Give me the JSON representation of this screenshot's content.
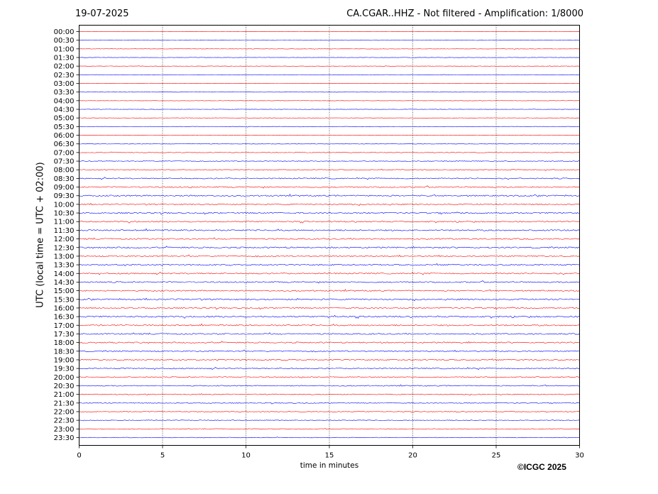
{
  "header": {
    "date": "19-07-2025",
    "title": "CA.CGAR..HHZ - Not filtered - Amplification: 1/8000"
  },
  "footer": {
    "copyright": "©ICGC 2025"
  },
  "chart_data": {
    "type": "line",
    "title": "CA.CGAR..HHZ - Not filtered - Amplification: 1/8000",
    "xlabel": "time in minutes",
    "ylabel": "UTC (local time = UTC + 02:00)",
    "xlim": [
      0,
      30
    ],
    "xticks": [
      0,
      5,
      10,
      15,
      20,
      25,
      30
    ],
    "vertical_gridlines": [
      5,
      10,
      15,
      20,
      25
    ],
    "trace_colors": [
      "#ff0000",
      "#0000ff"
    ],
    "rows": [
      "00:00",
      "00:30",
      "01:00",
      "01:30",
      "02:00",
      "02:30",
      "03:00",
      "03:30",
      "04:00",
      "04:30",
      "05:00",
      "05:30",
      "06:00",
      "06:30",
      "07:00",
      "07:30",
      "08:00",
      "08:30",
      "09:00",
      "09:30",
      "10:00",
      "10:30",
      "11:00",
      "11:30",
      "12:00",
      "12:30",
      "13:00",
      "13:30",
      "14:00",
      "14:30",
      "15:00",
      "15:30",
      "16:00",
      "16:30",
      "17:00",
      "17:30",
      "18:00",
      "18:30",
      "19:00",
      "19:30",
      "20:00",
      "20:30",
      "21:00",
      "21:30",
      "22:00",
      "22:30",
      "23:00",
      "23:30"
    ],
    "noise_level": [
      0.3,
      0.3,
      0.3,
      0.3,
      0.3,
      0.3,
      0.3,
      0.3,
      0.3,
      0.3,
      0.3,
      0.4,
      0.4,
      0.4,
      0.5,
      0.6,
      0.7,
      0.9,
      1.0,
      1.1,
      1.0,
      1.1,
      1.0,
      1.1,
      1.0,
      1.1,
      1.0,
      1.1,
      1.0,
      1.0,
      1.0,
      1.1,
      1.0,
      1.2,
      1.1,
      1.0,
      1.0,
      1.0,
      0.9,
      0.9,
      0.8,
      0.8,
      0.7,
      0.7,
      0.6,
      0.6,
      0.5,
      0.5
    ]
  }
}
